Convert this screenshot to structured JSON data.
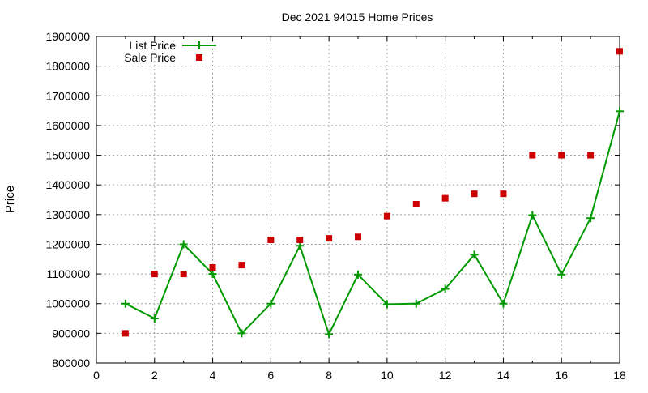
{
  "chart_data": {
    "type": "line",
    "title": "Dec 2021 94015 Home Prices",
    "xlabel": "",
    "ylabel": "Price",
    "xlim": [
      0,
      18
    ],
    "ylim": [
      800000,
      1900000
    ],
    "x_ticks": [
      "0",
      "2",
      "4",
      "6",
      "8",
      "10",
      "12",
      "14",
      "16",
      "18"
    ],
    "y_ticks": [
      "800000",
      "900000",
      "1000000",
      "1100000",
      "1200000",
      "1300000",
      "1400000",
      "1500000",
      "1600000",
      "1700000",
      "1800000",
      "1900000"
    ],
    "grid": true,
    "legend_position": "top-left",
    "x": [
      1,
      2,
      3,
      4,
      5,
      6,
      7,
      8,
      9,
      10,
      11,
      12,
      13,
      14,
      15,
      16,
      17,
      18
    ],
    "series": [
      {
        "name": "List Price",
        "style": "linespoints",
        "color": "#009900",
        "marker": "plus",
        "values": [
          1000000,
          950000,
          1200000,
          1100000,
          900000,
          1000000,
          1195000,
          897000,
          1098000,
          998000,
          1000000,
          1050000,
          1165000,
          1000000,
          1298000,
          1098000,
          1288000,
          1648000
        ]
      },
      {
        "name": "Sale Price",
        "style": "points",
        "color": "#cc0000",
        "marker": "square",
        "values": [
          900000,
          1100000,
          1100000,
          1122000,
          1130000,
          1215000,
          1215000,
          1220000,
          1225000,
          1295000,
          1335000,
          1355000,
          1370000,
          1370000,
          1500000,
          1500000,
          1500000,
          1850000
        ]
      }
    ]
  }
}
